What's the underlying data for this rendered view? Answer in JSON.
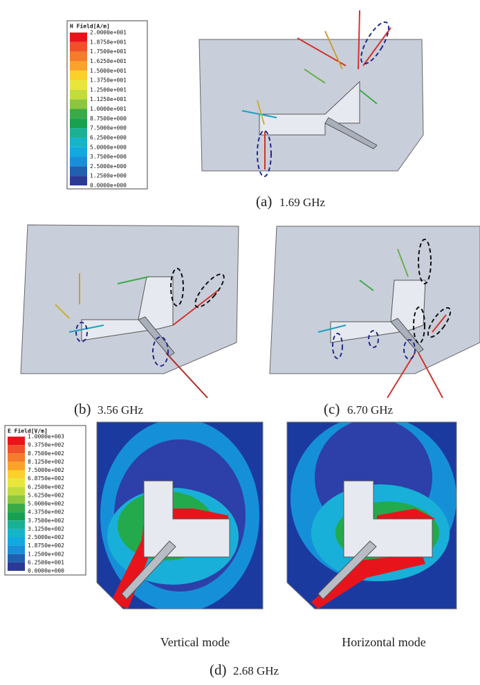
{
  "h_legend": {
    "title": "H Field[A/m]",
    "labels": [
      "2.0000e+001",
      "1.8750e+001",
      "1.7500e+001",
      "1.6250e+001",
      "1.5000e+001",
      "1.3750e+001",
      "1.2500e+001",
      "1.1250e+001",
      "1.0000e+001",
      "8.7500e+000",
      "7.5000e+000",
      "6.2500e+000",
      "5.0000e+000",
      "3.7500e+000",
      "2.5000e+000",
      "1.2500e+000",
      "0.0000e+000"
    ],
    "colors": [
      "#e8141c",
      "#f0502a",
      "#f47c2a",
      "#f9a32a",
      "#fbd02c",
      "#e8e63a",
      "#c2dc3c",
      "#8cc63e",
      "#3aaa48",
      "#18a050",
      "#1ab094",
      "#16b4c8",
      "#12a8e0",
      "#1a8ed8",
      "#2060b0",
      "#2a3a94"
    ]
  },
  "e_legend": {
    "title": "E Field[V/m]",
    "labels": [
      "1.0000e+003",
      "9.3750e+002",
      "8.7500e+002",
      "8.1250e+002",
      "7.5000e+002",
      "6.8750e+002",
      "6.2500e+002",
      "5.6250e+002",
      "5.0000e+002",
      "4.3750e+002",
      "3.7500e+002",
      "3.1250e+002",
      "2.5000e+002",
      "1.8750e+002",
      "1.2500e+002",
      "6.2500e+001",
      "0.0000e+000"
    ],
    "colors": [
      "#e8141c",
      "#f0502a",
      "#f47c2a",
      "#f9a32a",
      "#fbd02c",
      "#e8e63a",
      "#c2dc3c",
      "#8cc63e",
      "#3aaa48",
      "#18a050",
      "#1ab094",
      "#16b4c8",
      "#12a8e0",
      "#1a8ed8",
      "#2060b0",
      "#2a3a94"
    ]
  },
  "panels": [
    {
      "label": "(a)",
      "frequency": "1.69 GHz"
    },
    {
      "label": "(b)",
      "frequency": "3.56 GHz"
    },
    {
      "label": "(c)",
      "frequency": "6.70 GHz"
    }
  ],
  "field_plots": {
    "captions": [
      "Vertical mode",
      "Horizontal mode"
    ],
    "label": "(d)",
    "frequency": "2.68 GHz"
  }
}
